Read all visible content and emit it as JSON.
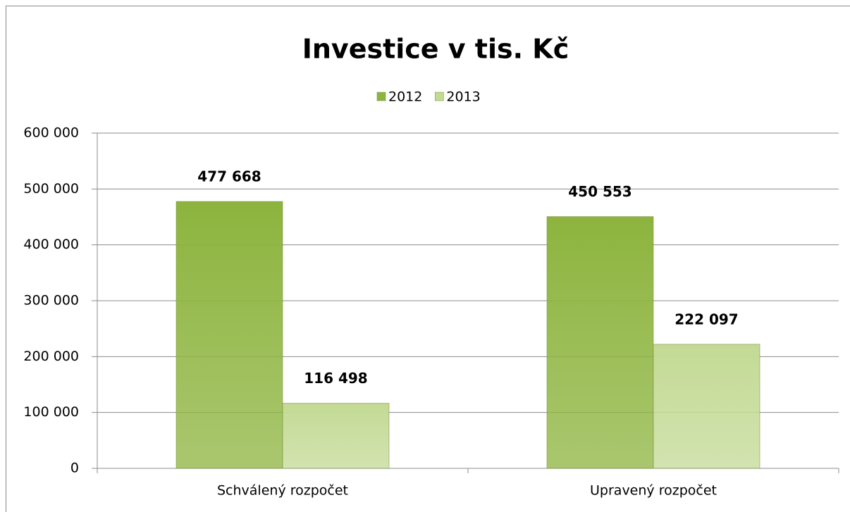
{
  "chart_data": {
    "type": "bar",
    "title": "Investice v tis. Kč",
    "categories": [
      "Schválený rozpočet",
      "Upravený rozpočet"
    ],
    "series": [
      {
        "name": "2012",
        "color": "#8db43e",
        "values": [
          477668,
          450553
        ],
        "value_labels": [
          "477 668",
          "450 553"
        ]
      },
      {
        "name": "2013",
        "color": "#c3da95",
        "values": [
          116498,
          222097
        ],
        "value_labels": [
          "116 498",
          "222 097"
        ]
      }
    ],
    "ylim": [
      0,
      600000
    ],
    "yticks": [
      0,
      {
        "value": 100000,
        "label": "100 000"
      },
      {
        "value": 200000,
        "label": "200 000"
      },
      {
        "value": 300000,
        "label": "300 000"
      },
      {
        "value": 400000,
        "label": "400 000"
      },
      {
        "value": 500000,
        "label": "500 000"
      },
      {
        "value": 600000,
        "label": "600 000"
      }
    ],
    "grid": true,
    "legend": "top"
  }
}
